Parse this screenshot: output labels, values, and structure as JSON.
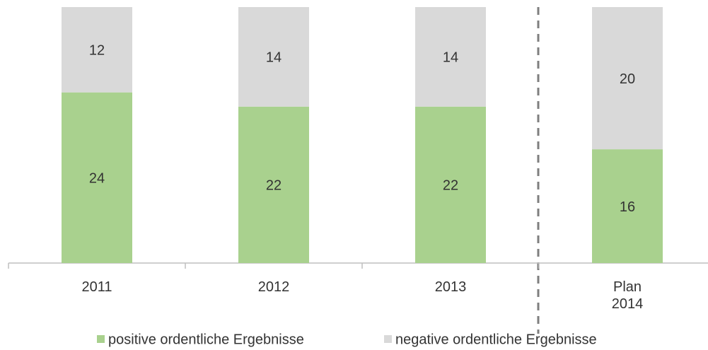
{
  "chart_data": {
    "type": "stacked_bar",
    "categories": [
      "2011",
      "2012",
      "2013",
      "Plan\n2014"
    ],
    "series": [
      {
        "name": "positive ordentliche Ergebnisse",
        "color": "#a9d18e",
        "values": [
          24,
          22,
          22,
          16
        ]
      },
      {
        "name": "negative ordentliche Ergebnisse",
        "color": "#d9d9d9",
        "values": [
          12,
          14,
          14,
          20
        ]
      }
    ]
  }
}
